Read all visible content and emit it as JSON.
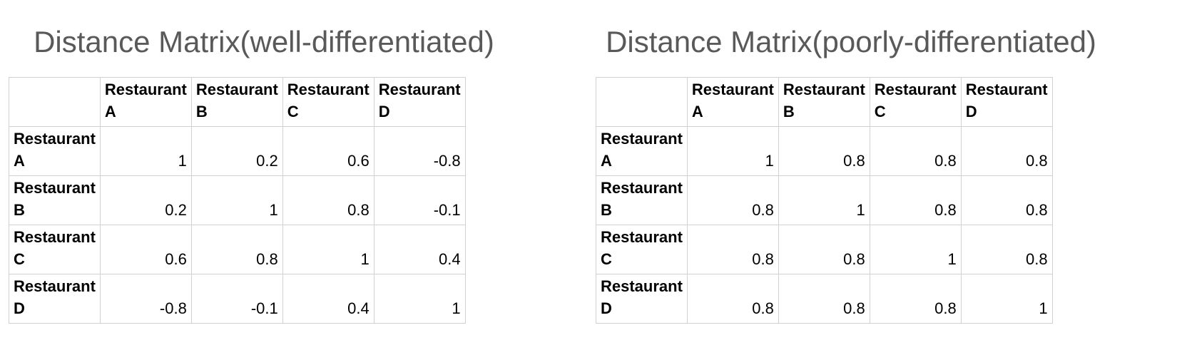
{
  "chart_data": [
    {
      "type": "table",
      "title": "Distance Matrix(well-differentiated)",
      "columns": [
        [
          "Restaurant",
          "A"
        ],
        [
          "Restaurant",
          "B"
        ],
        [
          "Restaurant",
          "C"
        ],
        [
          "Restaurant",
          "D"
        ]
      ],
      "rows": [
        {
          "label": [
            "Restaurant",
            "A"
          ],
          "values": [
            "1",
            "0.2",
            "0.6",
            "-0.8"
          ]
        },
        {
          "label": [
            "Restaurant",
            "B"
          ],
          "values": [
            "0.2",
            "1",
            "0.8",
            "-0.1"
          ]
        },
        {
          "label": [
            "Restaurant",
            "C"
          ],
          "values": [
            "0.6",
            "0.8",
            "1",
            "0.4"
          ]
        },
        {
          "label": [
            "Restaurant",
            "D"
          ],
          "values": [
            "-0.8",
            "-0.1",
            "0.4",
            "1"
          ]
        }
      ]
    },
    {
      "type": "table",
      "title": "Distance Matrix(poorly-differentiated)",
      "columns": [
        [
          "Restaurant",
          "A"
        ],
        [
          "Restaurant",
          "B"
        ],
        [
          "Restaurant",
          "C"
        ],
        [
          "Restaurant",
          "D"
        ]
      ],
      "rows": [
        {
          "label": [
            "Restaurant",
            "A"
          ],
          "values": [
            "1",
            "0.8",
            "0.8",
            "0.8"
          ]
        },
        {
          "label": [
            "Restaurant",
            "B"
          ],
          "values": [
            "0.8",
            "1",
            "0.8",
            "0.8"
          ]
        },
        {
          "label": [
            "Restaurant",
            "C"
          ],
          "values": [
            "0.8",
            "0.8",
            "1",
            "0.8"
          ]
        },
        {
          "label": [
            "Restaurant",
            "D"
          ],
          "values": [
            "0.8",
            "0.8",
            "0.8",
            "1"
          ]
        }
      ]
    }
  ],
  "colors": {
    "title_text": "#595959",
    "cell_border": "#d0d0d0",
    "background": "#ffffff"
  }
}
